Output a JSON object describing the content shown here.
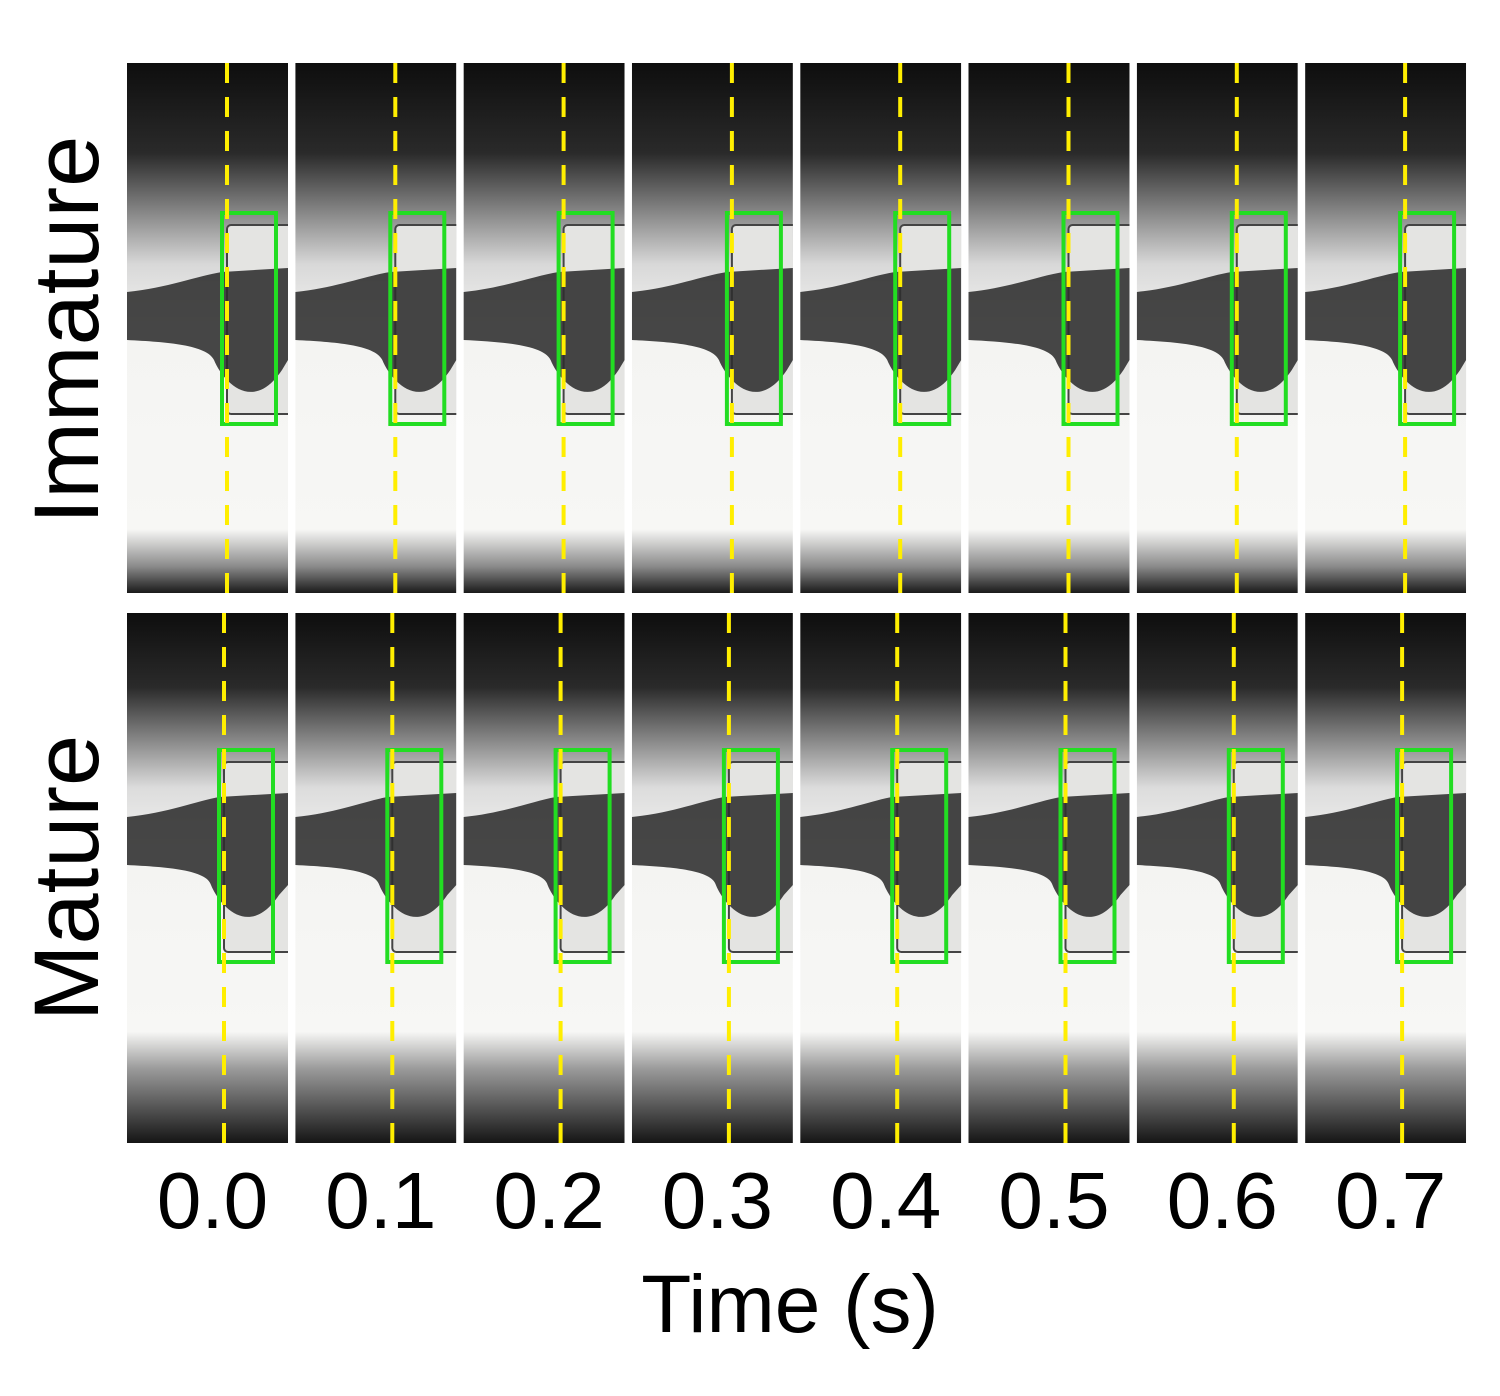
{
  "rows": [
    {
      "label": "Immature"
    },
    {
      "label": "Mature"
    }
  ],
  "time_labels": [
    "0.0",
    "0.1",
    "0.2",
    "0.3",
    "0.4",
    "0.5",
    "0.6",
    "0.7"
  ],
  "x_label": "Time (s)"
}
